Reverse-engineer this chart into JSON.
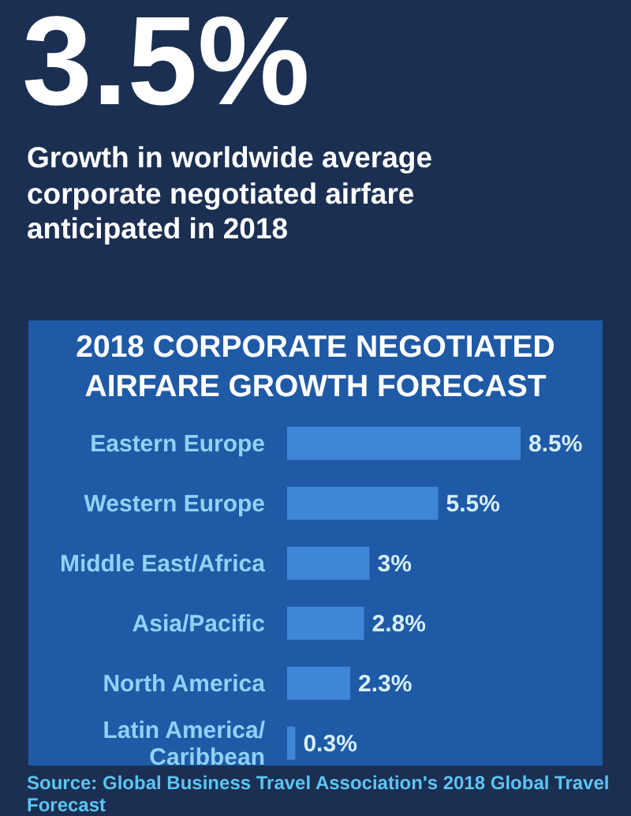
{
  "chart_data": {
    "type": "bar",
    "orientation": "horizontal",
    "title": "2018 CORPORATE NEGOTIATED AIRFARE GROWTH FORECAST",
    "categories": [
      "Eastern Europe",
      "Western Europe",
      "Middle East/Africa",
      "Asia/Pacific",
      "North America",
      "Latin America/Caribbean"
    ],
    "values": [
      8.5,
      5.5,
      3,
      2.8,
      2.3,
      0.3
    ],
    "value_labels": [
      "8.5%",
      "5.5%",
      "3%",
      "2.8%",
      "2.3%",
      "0.3%"
    ],
    "color": "#3f86d6",
    "annotations": [
      "3.5%",
      "Growth in worldwide average corporate negotiated airfare anticipated in 2018",
      "Source: Global Business Travel Association's 2018 Global Travel Forecast"
    ]
  }
}
